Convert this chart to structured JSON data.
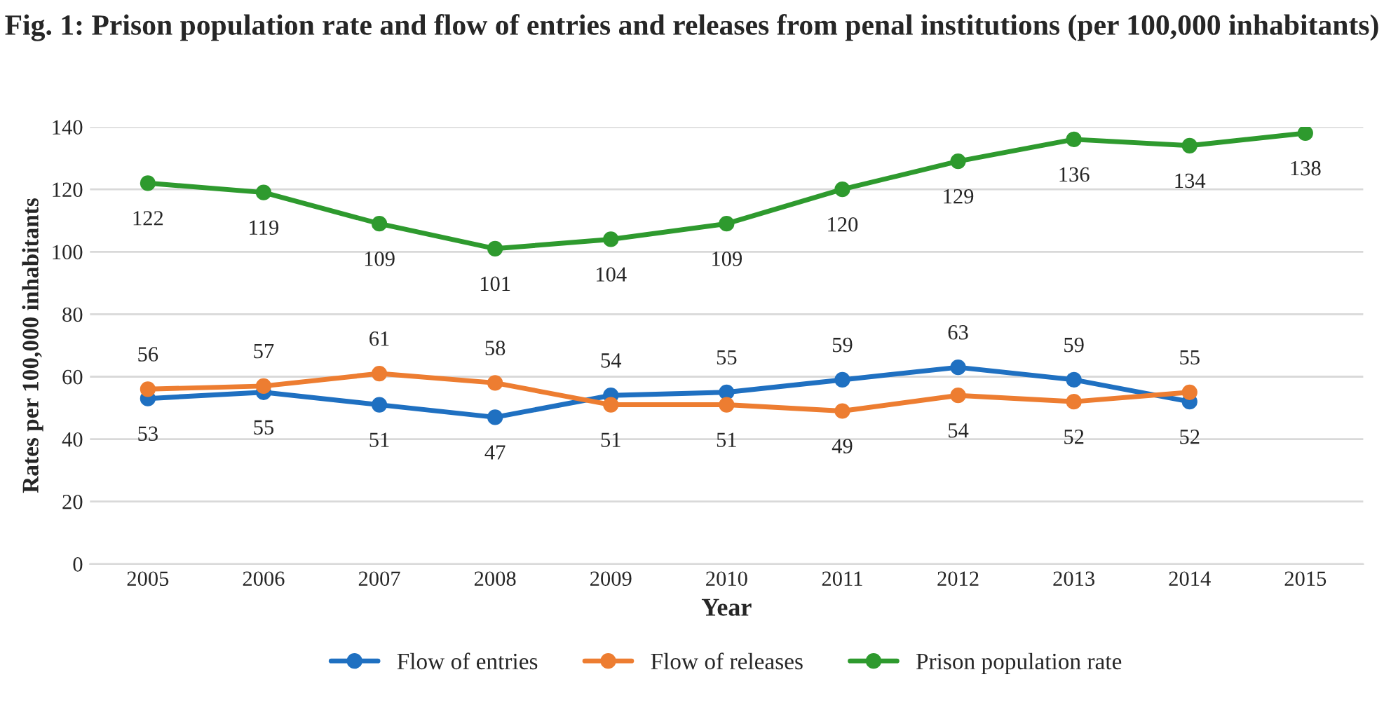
{
  "chart_data": {
    "type": "line",
    "title": "Fig. 1: Prison population rate and flow of entries and releases from penal institutions (per 100,000 inhabitants)",
    "xlabel": "Year",
    "ylabel": "Rates per 100,000 inhabitants",
    "categories": [
      "2005",
      "2006",
      "2007",
      "2008",
      "2009",
      "2010",
      "2011",
      "2012",
      "2013",
      "2014",
      "2015"
    ],
    "series": [
      {
        "name": "Flow of entries",
        "color": "#1f70c1",
        "values": [
          53,
          55,
          51,
          47,
          54,
          55,
          59,
          63,
          59,
          52,
          null
        ]
      },
      {
        "name": "Flow of releases",
        "color": "#ed7d31",
        "values": [
          56,
          57,
          61,
          58,
          51,
          51,
          49,
          54,
          52,
          55,
          null
        ]
      },
      {
        "name": "Prison population rate",
        "color": "#2e9a2e",
        "values": [
          122,
          119,
          109,
          101,
          104,
          109,
          120,
          129,
          136,
          134,
          138
        ]
      }
    ],
    "ylim": [
      0,
      140
    ],
    "yticks": [
      0,
      20,
      40,
      60,
      80,
      100,
      120,
      140
    ],
    "grid": "y",
    "legend": "bottom",
    "marker": "circle",
    "line_style": "solid",
    "data_labels": true
  }
}
